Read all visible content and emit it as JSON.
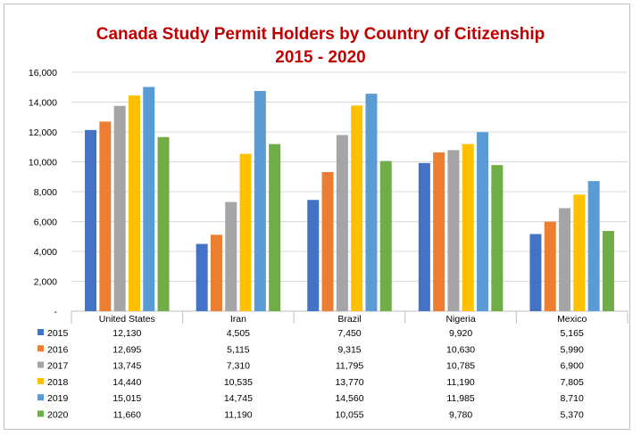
{
  "chart_data": {
    "type": "bar",
    "title": "Canada Study Permit Holders by Country of Citizenship",
    "subtitle": "2015 - 2020",
    "categories": [
      "United States",
      "Iran",
      "Brazil",
      "Nigeria",
      "Mexico"
    ],
    "ylim": [
      0,
      16000
    ],
    "yticks": [
      0,
      2000,
      4000,
      6000,
      8000,
      10000,
      12000,
      14000,
      16000
    ],
    "ytick_labels": [
      "-",
      "2,000",
      "4,000",
      "6,000",
      "8,000",
      "10,000",
      "12,000",
      "14,000",
      "16,000"
    ],
    "grid": true,
    "legend": "data-table-below",
    "series": [
      {
        "name": "2015",
        "color": "#4472c4",
        "values": [
          12130,
          4505,
          7450,
          9920,
          5165
        ],
        "labels": [
          "12,130",
          "4,505",
          "7,450",
          "9,920",
          "5,165"
        ]
      },
      {
        "name": "2016",
        "color": "#ed7d31",
        "values": [
          12695,
          5115,
          9315,
          10630,
          5990
        ],
        "labels": [
          "12,695",
          "5,115",
          "9,315",
          "10,630",
          "5,990"
        ]
      },
      {
        "name": "2017",
        "color": "#a5a5a5",
        "values": [
          13745,
          7310,
          11795,
          10785,
          6900
        ],
        "labels": [
          "13,745",
          "7,310",
          "11,795",
          "10,785",
          "6,900"
        ]
      },
      {
        "name": "2018",
        "color": "#ffc000",
        "values": [
          14440,
          10535,
          13770,
          11190,
          7805
        ],
        "labels": [
          "14,440",
          "10,535",
          "13,770",
          "11,190",
          "7,805"
        ]
      },
      {
        "name": "2019",
        "color": "#5b9bd5",
        "values": [
          15015,
          14745,
          14560,
          11985,
          8710
        ],
        "labels": [
          "15,015",
          "14,745",
          "14,560",
          "11,985",
          "8,710"
        ]
      },
      {
        "name": "2020",
        "color": "#70ad47",
        "values": [
          11660,
          11190,
          10055,
          9780,
          5370
        ],
        "labels": [
          "11,660",
          "11,190",
          "10,055",
          "9,780",
          "5,370"
        ]
      }
    ]
  }
}
